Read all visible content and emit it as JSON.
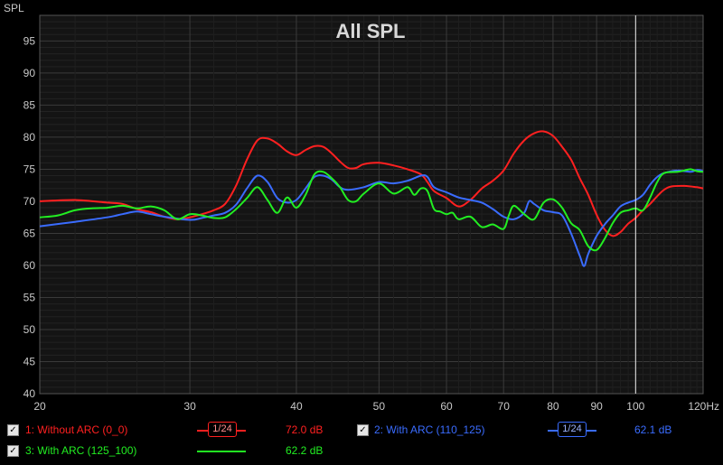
{
  "chart_data": {
    "type": "line",
    "title": "All SPL",
    "ylabel": "SPL",
    "xunit": "Hz",
    "xscale": "log",
    "xlim": [
      20,
      120
    ],
    "ylim": [
      40,
      99
    ],
    "xticks": [
      20,
      30,
      40,
      50,
      60,
      70,
      80,
      90,
      100,
      120
    ],
    "xtick_labels": [
      "20",
      "30",
      "40",
      "50",
      "60",
      "70",
      "80",
      "90",
      "100",
      "120Hz"
    ],
    "yticks": [
      40,
      45,
      50,
      55,
      60,
      65,
      70,
      75,
      80,
      85,
      90,
      95
    ],
    "grid": true,
    "cursor_x": 100,
    "series": [
      {
        "name": "1: Without ARC (0_0)",
        "color": "#ff2020",
        "smoothing": "1/24",
        "readout": "72.0 dB",
        "points": [
          [
            20,
            70.0
          ],
          [
            22,
            70.2
          ],
          [
            24,
            69.8
          ],
          [
            25,
            69.6
          ],
          [
            26,
            68.8
          ],
          [
            27,
            68.3
          ],
          [
            28,
            67.6
          ],
          [
            29,
            67.2
          ],
          [
            30,
            67.5
          ],
          [
            31,
            68.0
          ],
          [
            32,
            68.6
          ],
          [
            33,
            69.6
          ],
          [
            34,
            72.5
          ],
          [
            35,
            76.5
          ],
          [
            36,
            79.5
          ],
          [
            37,
            79.8
          ],
          [
            38,
            79.0
          ],
          [
            39,
            77.8
          ],
          [
            40,
            77.2
          ],
          [
            41,
            78.0
          ],
          [
            42,
            78.6
          ],
          [
            43,
            78.5
          ],
          [
            44,
            77.5
          ],
          [
            45,
            76.2
          ],
          [
            46,
            75.2
          ],
          [
            47,
            75.2
          ],
          [
            48,
            75.8
          ],
          [
            50,
            76.0
          ],
          [
            52,
            75.6
          ],
          [
            54,
            75.0
          ],
          [
            56,
            74.2
          ],
          [
            57,
            73.0
          ],
          [
            58,
            71.6
          ],
          [
            60,
            70.5
          ],
          [
            62,
            69.2
          ],
          [
            64,
            70.2
          ],
          [
            66,
            72.0
          ],
          [
            68,
            73.2
          ],
          [
            70,
            74.8
          ],
          [
            72,
            77.5
          ],
          [
            74,
            79.5
          ],
          [
            76,
            80.6
          ],
          [
            78,
            80.9
          ],
          [
            80,
            80.2
          ],
          [
            82,
            78.5
          ],
          [
            84,
            76.5
          ],
          [
            86,
            73.6
          ],
          [
            88,
            71.0
          ],
          [
            90,
            67.9
          ],
          [
            92,
            65.6
          ],
          [
            94,
            64.6
          ],
          [
            96,
            65.2
          ],
          [
            98,
            66.5
          ],
          [
            100,
            67.4
          ],
          [
            102,
            68.6
          ],
          [
            104,
            69.6
          ],
          [
            106,
            70.8
          ],
          [
            108,
            71.8
          ],
          [
            110,
            72.3
          ],
          [
            114,
            72.4
          ],
          [
            118,
            72.2
          ],
          [
            120,
            72.0
          ]
        ]
      },
      {
        "name": "2: With ARC (110_125)",
        "color": "#3a6cff",
        "smoothing": "1/24",
        "readout": "62.1 dB",
        "points": [
          [
            20,
            66.1
          ],
          [
            22,
            66.8
          ],
          [
            24,
            67.5
          ],
          [
            25,
            68.0
          ],
          [
            26,
            68.4
          ],
          [
            27,
            68.0
          ],
          [
            28,
            67.6
          ],
          [
            30,
            67.1
          ],
          [
            31,
            67.4
          ],
          [
            32,
            67.8
          ],
          [
            33,
            68.2
          ],
          [
            34,
            69.5
          ],
          [
            35,
            72.0
          ],
          [
            36,
            74.0
          ],
          [
            37,
            73.0
          ],
          [
            38,
            70.5
          ],
          [
            39,
            69.8
          ],
          [
            40,
            70.2
          ],
          [
            41,
            72.0
          ],
          [
            42,
            73.8
          ],
          [
            43,
            74.0
          ],
          [
            44,
            73.4
          ],
          [
            45,
            72.2
          ],
          [
            46,
            71.8
          ],
          [
            48,
            72.2
          ],
          [
            50,
            73.0
          ],
          [
            52,
            72.8
          ],
          [
            54,
            73.2
          ],
          [
            56,
            74.0
          ],
          [
            57,
            73.8
          ],
          [
            58,
            72.2
          ],
          [
            60,
            71.4
          ],
          [
            62,
            70.6
          ],
          [
            64,
            70.2
          ],
          [
            66,
            69.8
          ],
          [
            68,
            68.8
          ],
          [
            70,
            67.6
          ],
          [
            72,
            67.2
          ],
          [
            74,
            68.2
          ],
          [
            75,
            70.0
          ],
          [
            76,
            69.6
          ],
          [
            78,
            68.6
          ],
          [
            80,
            68.3
          ],
          [
            82,
            67.8
          ],
          [
            84,
            65.0
          ],
          [
            86,
            61.5
          ],
          [
            87,
            59.9
          ],
          [
            88,
            61.8
          ],
          [
            90,
            64.6
          ],
          [
            92,
            66.4
          ],
          [
            94,
            67.8
          ],
          [
            96,
            69.2
          ],
          [
            98,
            69.8
          ],
          [
            100,
            70.2
          ],
          [
            102,
            71.0
          ],
          [
            104,
            72.6
          ],
          [
            106,
            73.8
          ],
          [
            108,
            74.4
          ],
          [
            112,
            74.8
          ],
          [
            116,
            74.6
          ],
          [
            118,
            74.9
          ],
          [
            120,
            74.7
          ]
        ]
      },
      {
        "name": "3: With ARC (125_100)",
        "color": "#22ee22",
        "smoothing": "",
        "readout": "62.2 dB",
        "points": [
          [
            20,
            67.5
          ],
          [
            21,
            67.8
          ],
          [
            22,
            68.6
          ],
          [
            23,
            68.9
          ],
          [
            24,
            69.0
          ],
          [
            25,
            69.3
          ],
          [
            26,
            68.9
          ],
          [
            27,
            69.2
          ],
          [
            28,
            68.6
          ],
          [
            29,
            67.2
          ],
          [
            30,
            68.0
          ],
          [
            31,
            67.8
          ],
          [
            32,
            67.4
          ],
          [
            33,
            67.5
          ],
          [
            34,
            68.8
          ],
          [
            35,
            70.5
          ],
          [
            36,
            72.2
          ],
          [
            37,
            70.2
          ],
          [
            38,
            68.2
          ],
          [
            39,
            70.6
          ],
          [
            40,
            69.0
          ],
          [
            41,
            71.0
          ],
          [
            42,
            74.2
          ],
          [
            43,
            74.6
          ],
          [
            44,
            73.6
          ],
          [
            45,
            72.2
          ],
          [
            46,
            70.2
          ],
          [
            47,
            70.0
          ],
          [
            48,
            71.2
          ],
          [
            50,
            72.8
          ],
          [
            52,
            71.2
          ],
          [
            54,
            72.2
          ],
          [
            55,
            71.0
          ],
          [
            56,
            72.0
          ],
          [
            57,
            71.6
          ],
          [
            58,
            68.8
          ],
          [
            59,
            68.4
          ],
          [
            60,
            68.0
          ],
          [
            61,
            68.2
          ],
          [
            62,
            67.2
          ],
          [
            64,
            67.6
          ],
          [
            66,
            66.0
          ],
          [
            68,
            66.4
          ],
          [
            70,
            65.7
          ],
          [
            71,
            67.8
          ],
          [
            72,
            69.3
          ],
          [
            74,
            68.0
          ],
          [
            76,
            67.2
          ],
          [
            78,
            69.8
          ],
          [
            80,
            70.3
          ],
          [
            82,
            69.0
          ],
          [
            84,
            66.6
          ],
          [
            86,
            65.5
          ],
          [
            88,
            63.0
          ],
          [
            90,
            62.4
          ],
          [
            92,
            64.2
          ],
          [
            94,
            66.6
          ],
          [
            96,
            68.2
          ],
          [
            98,
            68.6
          ],
          [
            100,
            68.9
          ],
          [
            102,
            68.6
          ],
          [
            104,
            70.6
          ],
          [
            106,
            73.0
          ],
          [
            108,
            74.4
          ],
          [
            112,
            74.6
          ],
          [
            114,
            74.8
          ],
          [
            116,
            75.0
          ],
          [
            118,
            74.7
          ],
          [
            120,
            74.6
          ]
        ]
      }
    ]
  },
  "legend": {
    "items": [
      {
        "label": "1: Without ARC (0_0)",
        "checked": "✓",
        "smoothing": "1/24",
        "readout": "72.0 dB",
        "color": "#ff2020"
      },
      {
        "label": "2: With ARC (110_125)",
        "checked": "✓",
        "smoothing": "1/24",
        "readout": "62.1 dB",
        "color": "#3a6cff"
      },
      {
        "label": "3: With ARC (125_100)",
        "checked": "✓",
        "smoothing": "",
        "readout": "62.2 dB",
        "color": "#22ee22"
      }
    ]
  }
}
